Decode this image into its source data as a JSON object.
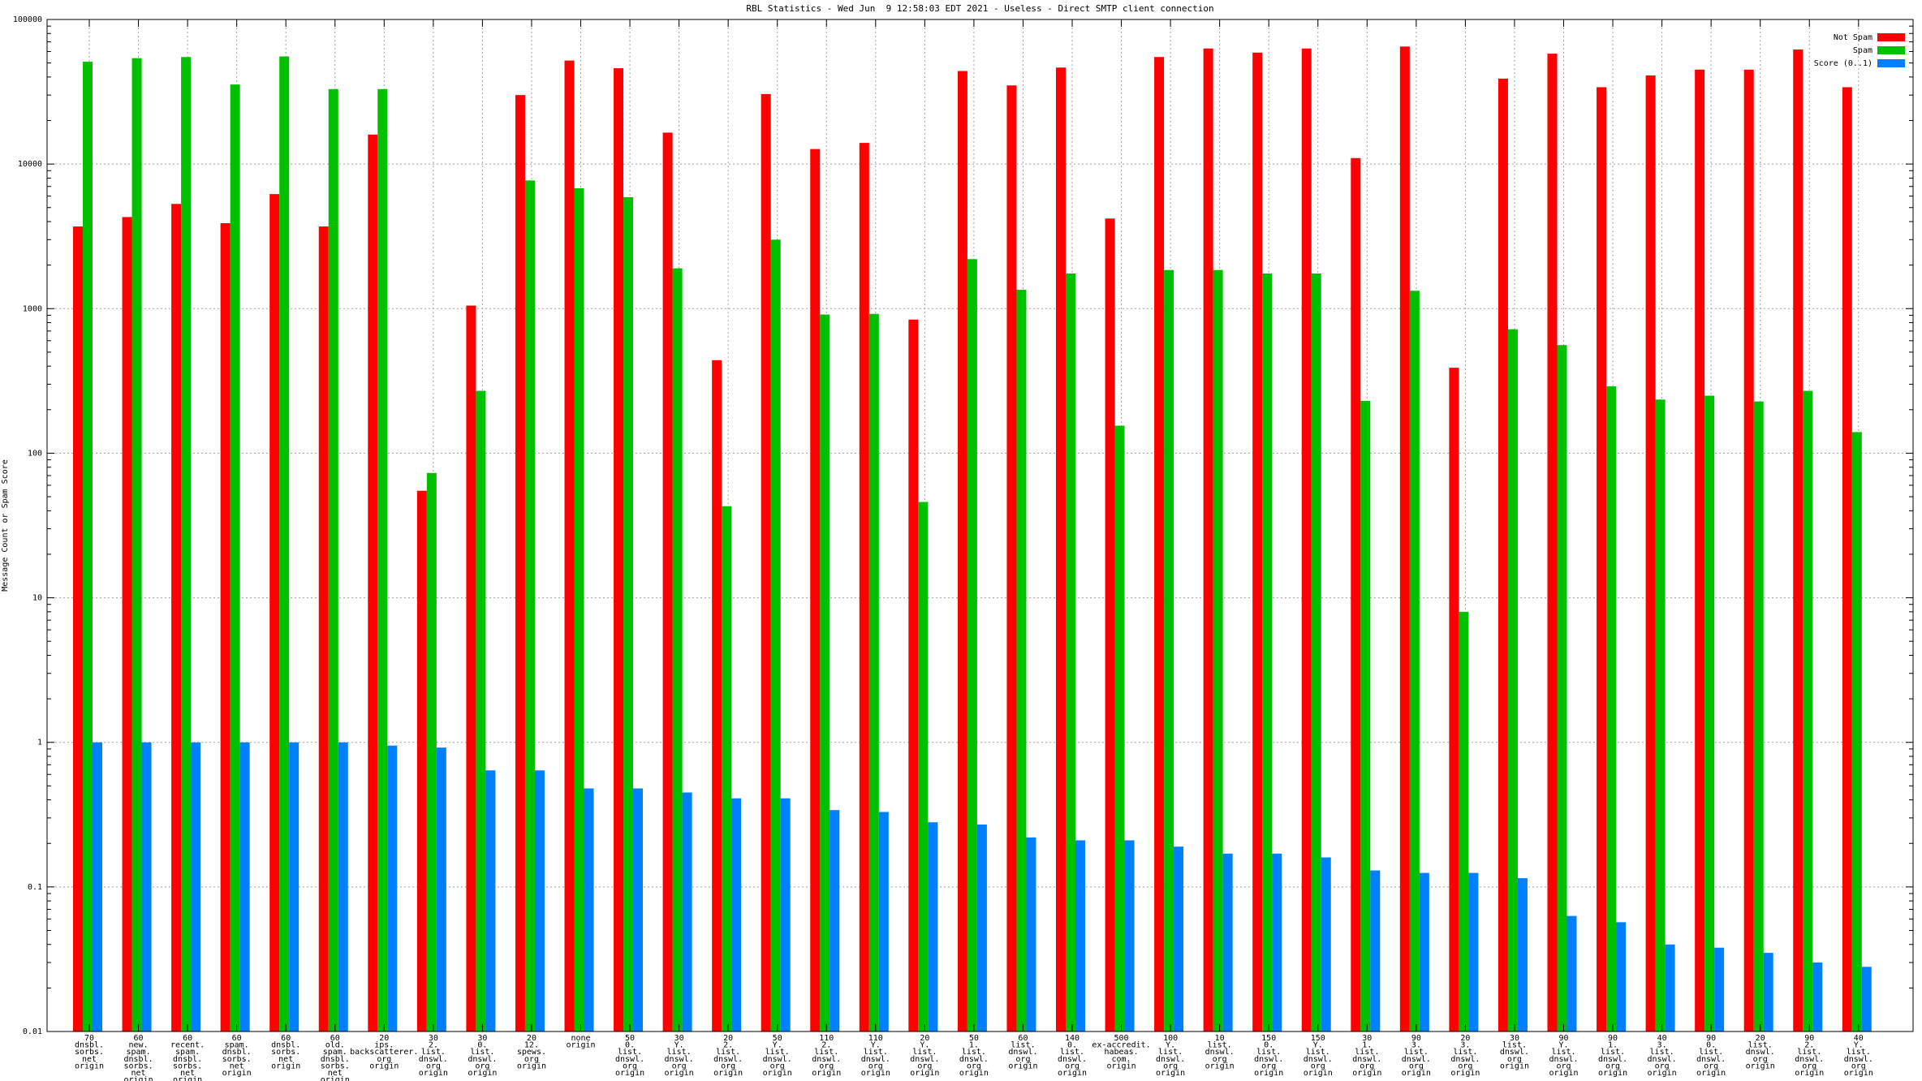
{
  "chart_data": {
    "type": "bar",
    "title": "RBL Statistics - Wed Jun  9 12:58:03 EDT 2021 - Useless - Direct SMTP client connection",
    "xlabel": "",
    "ylabel": "Message Count or Spam Score",
    "yscale": "log",
    "ylim": [
      0.01,
      100000
    ],
    "yticks": [
      "100000",
      "10000",
      "1000",
      "100",
      "10",
      "1",
      "0.1",
      "0.01"
    ],
    "grid": true,
    "legend_position": "top-right",
    "colors": {
      "not_spam": "#ff0000",
      "spam": "#00c000",
      "score": "#0080ff"
    },
    "categories": [
      [
        "70",
        "dnsbl.",
        "sorbs.",
        "net",
        "origin"
      ],
      [
        "60",
        "new.",
        "spam.",
        "dnsbl.",
        "sorbs.",
        "net",
        "origin"
      ],
      [
        "60",
        "recent.",
        "spam.",
        "dnsbl.",
        "sorbs.",
        "net",
        "origin"
      ],
      [
        "60",
        "spam.",
        "dnsbl.",
        "sorbs.",
        "net",
        "origin"
      ],
      [
        "60",
        "dnsbl.",
        "sorbs.",
        "net",
        "origin"
      ],
      [
        "60",
        "old.",
        "spam.",
        "dnsbl.",
        "sorbs.",
        "net",
        "origin"
      ],
      [
        "20",
        "ips.",
        "backscatterer.",
        "org",
        "origin"
      ],
      [
        "30",
        "2.",
        "list.",
        "dnswl.",
        "org",
        "origin"
      ],
      [
        "30",
        "0.",
        "list.",
        "dnswl.",
        "org",
        "origin"
      ],
      [
        "20",
        "12.",
        "spews.",
        "org",
        "origin"
      ],
      [
        "none",
        "origin"
      ],
      [
        "50",
        "0.",
        "list.",
        "dnswl.",
        "org",
        "origin"
      ],
      [
        "30",
        "Y.",
        "list.",
        "dnswl.",
        "org",
        "origin"
      ],
      [
        "20",
        "2.",
        "list.",
        "dnswl.",
        "org",
        "origin"
      ],
      [
        "50",
        "Y.",
        "list.",
        "dnswl.",
        "org",
        "origin"
      ],
      [
        "110",
        "2.",
        "list.",
        "dnswl.",
        "org",
        "origin"
      ],
      [
        "110",
        "Y.",
        "list.",
        "dnswl.",
        "org",
        "origin"
      ],
      [
        "20",
        "Y.",
        "list.",
        "dnswl.",
        "org",
        "origin"
      ],
      [
        "50",
        "1.",
        "list.",
        "dnswl.",
        "org",
        "origin"
      ],
      [
        "60",
        "list.",
        "dnswl.",
        "org",
        "origin"
      ],
      [
        "140",
        "0.",
        "list.",
        "dnswl.",
        "org",
        "origin"
      ],
      [
        "500",
        "ex-accredit.",
        "habeas.",
        "com.",
        "origin"
      ],
      [
        "100",
        "Y.",
        "list.",
        "dnswl.",
        "org",
        "origin"
      ],
      [
        "10",
        "list.",
        "dnswl.",
        "org",
        "origin"
      ],
      [
        "150",
        "0.",
        "list.",
        "dnswl.",
        "org",
        "origin"
      ],
      [
        "150",
        "Y.",
        "list.",
        "dnswl.",
        "org",
        "origin"
      ],
      [
        "30",
        "1.",
        "list.",
        "dnswl.",
        "org",
        "origin"
      ],
      [
        "90",
        "3.",
        "list.",
        "dnswl.",
        "org",
        "origin"
      ],
      [
        "20",
        "3.",
        "list.",
        "dnswl.",
        "org",
        "origin"
      ],
      [
        "30",
        "list.",
        "dnswl.",
        "org",
        "origin"
      ],
      [
        "90",
        "Y.",
        "list.",
        "dnswl.",
        "org",
        "origin"
      ],
      [
        "90",
        "1.",
        "list.",
        "dnswl.",
        "org",
        "origin"
      ],
      [
        "40",
        "3.",
        "list.",
        "dnswl.",
        "org",
        "origin"
      ],
      [
        "90",
        "0.",
        "list.",
        "dnswl.",
        "org",
        "origin"
      ],
      [
        "20",
        "list.",
        "dnswl.",
        "org",
        "origin"
      ],
      [
        "90",
        "2.",
        "list.",
        "dnswl.",
        "org",
        "origin"
      ],
      [
        "40",
        "Y.",
        "list.",
        "dnswl.",
        "org",
        "origin"
      ]
    ],
    "series": [
      {
        "name": "Not Spam",
        "color": "#ff0000",
        "values": [
          3700,
          4300,
          5300,
          3900,
          6200,
          3700,
          16000,
          55,
          1050,
          30000,
          52000,
          46000,
          16500,
          440,
          30500,
          12700,
          14000,
          840,
          44000,
          35000,
          46500,
          4200,
          55000,
          63000,
          59000,
          63000,
          11000,
          65000,
          390,
          39000,
          58000,
          34000,
          41000,
          45000,
          45000,
          62000,
          34000
        ]
      },
      {
        "name": "Spam",
        "color": "#00c000",
        "values": [
          51000,
          54000,
          55000,
          35500,
          55500,
          33000,
          33000,
          73,
          270,
          7700,
          6800,
          5900,
          1900,
          43,
          3000,
          910,
          920,
          46,
          2200,
          1350,
          1750,
          155,
          1850,
          1850,
          1750,
          1750,
          230,
          1330,
          8,
          720,
          560,
          290,
          235,
          250,
          228,
          270,
          140
        ]
      },
      {
        "name": "Score (0..1)",
        "color": "#0080ff",
        "values": [
          1.0,
          1.0,
          1.0,
          1.0,
          1.0,
          1.0,
          0.95,
          0.92,
          0.64,
          0.64,
          0.48,
          0.48,
          0.45,
          0.41,
          0.41,
          0.34,
          0.33,
          0.28,
          0.27,
          0.22,
          0.21,
          0.21,
          0.19,
          0.17,
          0.17,
          0.16,
          0.13,
          0.125,
          0.125,
          0.115,
          0.063,
          0.057,
          0.04,
          0.038,
          0.035,
          0.03,
          0.028
        ]
      }
    ]
  }
}
